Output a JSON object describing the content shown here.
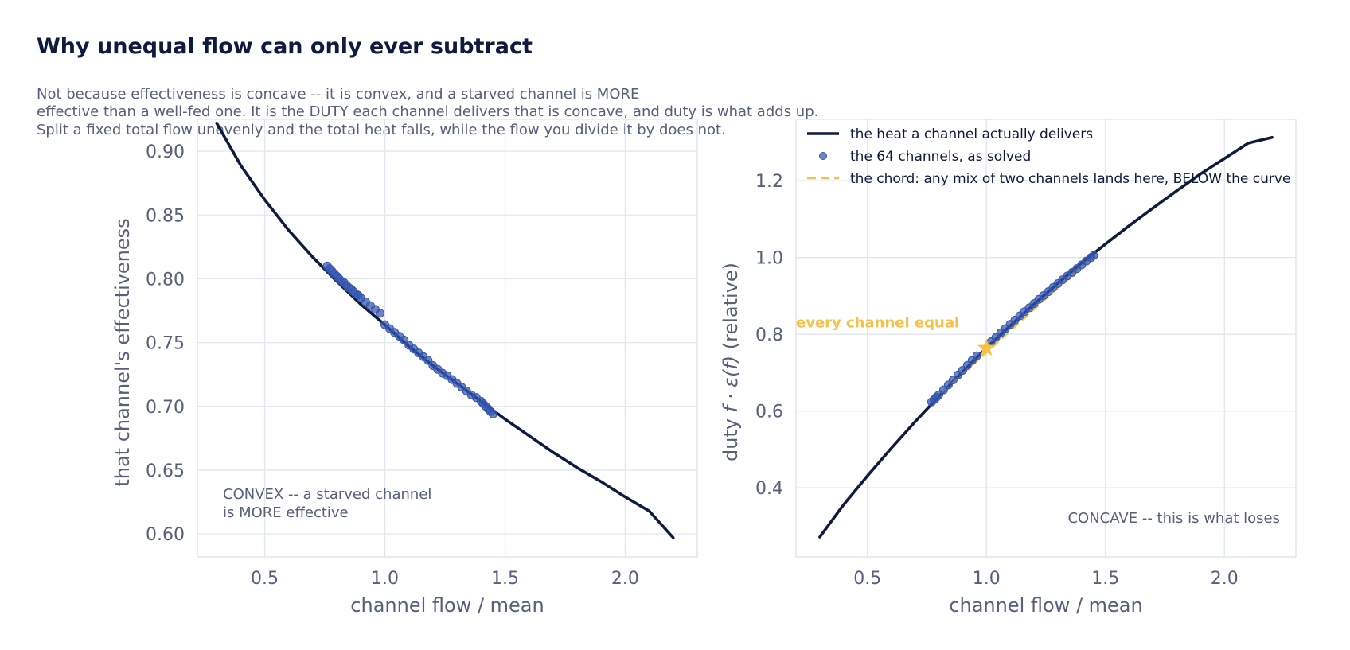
{
  "title": "Why unequal flow can only ever subtract",
  "subtitle_lines": [
    "Not because effectiveness is concave -- it is convex, and a starved channel is MORE",
    "effective than a well-fed one. It is the DUTY each channel delivers that is concave, and duty is what adds up.",
    "Split a fixed total flow unevenly and the total heat falls, while the flow you divide it by does not."
  ],
  "colors": {
    "curve": "#0e1a3e",
    "dots": "#3355b0",
    "chord": "#f7c244",
    "text": "#56607a",
    "grid": "#e1e6ef"
  },
  "chart_data": [
    {
      "type": "line",
      "xlabel": "channel flow / mean",
      "ylabel": "that channel's effectiveness",
      "xlim": [
        0.22,
        2.3
      ],
      "ylim": [
        0.582,
        0.925
      ],
      "xticks": [
        0.5,
        1.0,
        1.5,
        2.0
      ],
      "xtick_labels": [
        "0.5",
        "1.0",
        "1.5",
        "2.0"
      ],
      "yticks": [
        0.6,
        0.65,
        0.7,
        0.75,
        0.8,
        0.85,
        0.9
      ],
      "ytick_labels": [
        "0.60",
        "0.65",
        "0.70",
        "0.75",
        "0.80",
        "0.85",
        "0.90"
      ],
      "grid": true,
      "curve_x": [
        0.3,
        0.4,
        0.5,
        0.6,
        0.7,
        0.8,
        0.9,
        1.0,
        1.1,
        1.2,
        1.3,
        1.4,
        1.5,
        1.6,
        1.7,
        1.8,
        1.9,
        2.0,
        2.1,
        2.2
      ],
      "curve_y": [
        0.922,
        0.889,
        0.862,
        0.838,
        0.817,
        0.798,
        0.78,
        0.764,
        0.747,
        0.732,
        0.718,
        0.704,
        0.69,
        0.677,
        0.664,
        0.652,
        0.641,
        0.629,
        0.618,
        0.597
      ],
      "points_x": [
        0.76,
        0.77,
        0.78,
        0.79,
        0.8,
        0.81,
        0.82,
        0.83,
        0.84,
        0.85,
        0.86,
        0.87,
        0.88,
        0.89,
        0.9,
        0.92,
        0.94,
        0.96,
        0.98,
        1.0,
        1.02,
        1.04,
        1.06,
        1.08,
        1.1,
        1.12,
        1.14,
        1.16,
        1.18,
        1.2,
        1.22,
        1.24,
        1.26,
        1.28,
        1.3,
        1.32,
        1.34,
        1.36,
        1.38,
        1.4,
        1.41,
        1.42,
        1.43,
        1.44,
        1.45
      ],
      "points_y": [
        0.81,
        0.808,
        0.806,
        0.804,
        0.802,
        0.8,
        0.798,
        0.797,
        0.795,
        0.793,
        0.792,
        0.79,
        0.788,
        0.787,
        0.785,
        0.782,
        0.779,
        0.776,
        0.773,
        0.764,
        0.761,
        0.758,
        0.755,
        0.752,
        0.748,
        0.745,
        0.742,
        0.739,
        0.736,
        0.732,
        0.729,
        0.726,
        0.724,
        0.721,
        0.718,
        0.715,
        0.712,
        0.709,
        0.707,
        0.704,
        0.702,
        0.7,
        0.698,
        0.696,
        0.694
      ],
      "annotation_lines": [
        "CONVEX -- a starved channel",
        "is MORE effective"
      ],
      "annotation_position": "bottom-left"
    },
    {
      "type": "line",
      "xlabel": "channel flow / mean",
      "ylabel_parts": [
        "duty",
        "f · ε(f)",
        "(relative)"
      ],
      "xlim": [
        0.2,
        2.3
      ],
      "ylim": [
        0.22,
        1.36
      ],
      "xticks": [
        0.5,
        1.0,
        1.5,
        2.0
      ],
      "xtick_labels": [
        "0.5",
        "1.0",
        "1.5",
        "2.0"
      ],
      "yticks": [
        0.4,
        0.6,
        0.8,
        1.0,
        1.2
      ],
      "ytick_labels": [
        "0.4",
        "0.6",
        "0.8",
        "1.0",
        "1.2"
      ],
      "grid": true,
      "curve_x": [
        0.3,
        0.4,
        0.5,
        0.6,
        0.7,
        0.8,
        0.9,
        1.0,
        1.1,
        1.2,
        1.3,
        1.4,
        1.5,
        1.6,
        1.7,
        1.8,
        1.9,
        2.0,
        2.1,
        2.2
      ],
      "curve_y": [
        0.272,
        0.356,
        0.431,
        0.503,
        0.572,
        0.638,
        0.702,
        0.764,
        0.822,
        0.878,
        0.933,
        0.986,
        1.035,
        1.083,
        1.129,
        1.174,
        1.218,
        1.258,
        1.298,
        1.313
      ],
      "points_x": [
        0.77,
        0.78,
        0.79,
        0.8,
        0.82,
        0.84,
        0.86,
        0.88,
        0.9,
        0.92,
        0.94,
        0.96,
        1.02,
        1.04,
        1.06,
        1.08,
        1.1,
        1.12,
        1.14,
        1.16,
        1.18,
        1.2,
        1.22,
        1.24,
        1.26,
        1.28,
        1.3,
        1.32,
        1.34,
        1.36,
        1.38,
        1.4,
        1.42,
        1.44,
        1.45
      ],
      "points_y": [
        0.624,
        0.63,
        0.636,
        0.642,
        0.655,
        0.668,
        0.681,
        0.694,
        0.706,
        0.719,
        0.732,
        0.744,
        0.781,
        0.792,
        0.804,
        0.815,
        0.826,
        0.837,
        0.848,
        0.859,
        0.869,
        0.88,
        0.891,
        0.901,
        0.911,
        0.922,
        0.932,
        0.942,
        0.952,
        0.961,
        0.971,
        0.981,
        0.991,
        1.0,
        1.005
      ],
      "chord_x": [
        0.77,
        1.45
      ],
      "chord_y": [
        0.624,
        1.005
      ],
      "equal_point": [
        1.0,
        0.764
      ],
      "equal_label": "every channel equal",
      "annotation": "CONCAVE -- this is what loses",
      "annotation_position": "bottom-right",
      "legend": [
        {
          "label": "the heat a channel actually delivers",
          "style": "line"
        },
        {
          "label": "the 64 channels, as solved",
          "style": "dot"
        },
        {
          "label": "the chord: any mix of two channels lands here, BELOW the curve",
          "style": "dash"
        }
      ],
      "legend_position": "top-left"
    }
  ]
}
